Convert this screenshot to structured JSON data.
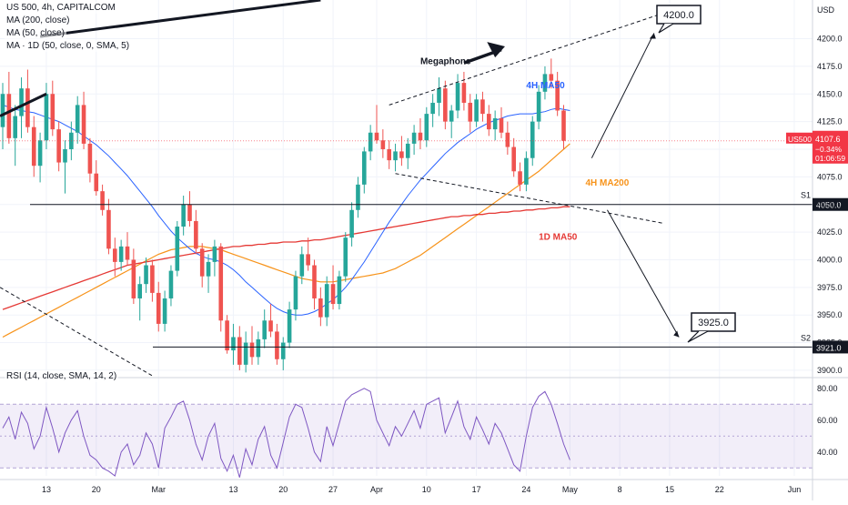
{
  "header": {
    "symbol_line": "US 500, 4h, CAPITALCOM",
    "indicators": [
      "MA (200, close)",
      "MA (50, close)",
      "MA · 1D (50, close, 0, SMA, 5)"
    ],
    "rsi_title": "RSI (14, close, SMA, 14, 2)"
  },
  "price_badge": {
    "symbol": "US500",
    "price": "4107.6",
    "change": "−0.34%",
    "countdown": "01:06:59",
    "color": "#f23645"
  },
  "chart_data": {
    "type": "candlestick",
    "currency": "USD",
    "x_ticks": [
      {
        "label": "13",
        "i": 7
      },
      {
        "label": "20",
        "i": 15
      },
      {
        "label": "Mar",
        "i": 25
      },
      {
        "label": "13",
        "i": 37
      },
      {
        "label": "20",
        "i": 45
      },
      {
        "label": "27",
        "i": 53
      },
      {
        "label": "Apr",
        "i": 60
      },
      {
        "label": "10",
        "i": 68
      },
      {
        "label": "17",
        "i": 76
      },
      {
        "label": "24",
        "i": 84
      },
      {
        "label": "May",
        "i": 91
      },
      {
        "label": "8",
        "i": 99
      },
      {
        "label": "15",
        "i": 107
      },
      {
        "label": "22",
        "i": 115
      },
      {
        "label": "Jun",
        "i": 127
      }
    ],
    "y_ticks": [
      3900,
      3925,
      3950,
      3975,
      4000,
      4025,
      4050,
      4075,
      4100,
      4125,
      4150,
      4175,
      4200
    ],
    "ylim": [
      3895,
      4235
    ],
    "candles": [
      [
        4120,
        4160,
        4100,
        4150
      ],
      [
        4150,
        4170,
        4105,
        4110
      ],
      [
        4110,
        4140,
        4085,
        4130
      ],
      [
        4130,
        4165,
        4110,
        4155
      ],
      [
        4155,
        4172,
        4115,
        4120
      ],
      [
        4120,
        4130,
        4075,
        4085
      ],
      [
        4085,
        4115,
        4070,
        4108
      ],
      [
        4108,
        4160,
        4100,
        4150
      ],
      [
        4150,
        4162,
        4112,
        4118
      ],
      [
        4118,
        4125,
        4080,
        4088
      ],
      [
        4088,
        4108,
        4060,
        4100
      ],
      [
        4100,
        4125,
        4090,
        4115
      ],
      [
        4115,
        4148,
        4105,
        4140
      ],
      [
        4140,
        4152,
        4100,
        4105
      ],
      [
        4105,
        4110,
        4070,
        4078
      ],
      [
        4078,
        4090,
        4058,
        4062
      ],
      [
        4062,
        4068,
        4040,
        4045
      ],
      [
        4045,
        4055,
        4005,
        4010
      ],
      [
        4010,
        4020,
        3985,
        3998
      ],
      [
        3998,
        4018,
        3990,
        4012
      ],
      [
        4012,
        4025,
        3995,
        4000
      ],
      [
        4000,
        4010,
        3960,
        3965
      ],
      [
        3965,
        3985,
        3945,
        3978
      ],
      [
        3978,
        4002,
        3970,
        3995
      ],
      [
        3995,
        4000,
        3962,
        3970
      ],
      [
        3970,
        3980,
        3935,
        3942
      ],
      [
        3942,
        3972,
        3935,
        3965
      ],
      [
        3965,
        3995,
        3958,
        3990
      ],
      [
        3990,
        4035,
        3985,
        4030
      ],
      [
        4030,
        4058,
        4022,
        4050
      ],
      [
        4050,
        4062,
        4030,
        4035
      ],
      [
        4035,
        4045,
        4005,
        4010
      ],
      [
        4010,
        4015,
        3975,
        3985
      ],
      [
        3985,
        4005,
        3970,
        3998
      ],
      [
        3998,
        4018,
        3985,
        4012
      ],
      [
        4012,
        4015,
        3935,
        3945
      ],
      [
        3945,
        3950,
        3915,
        3918
      ],
      [
        3918,
        3942,
        3905,
        3930
      ],
      [
        3930,
        3940,
        3900,
        3905
      ],
      [
        3905,
        3935,
        3898,
        3925
      ],
      [
        3925,
        3940,
        3905,
        3912
      ],
      [
        3912,
        3935,
        3905,
        3928
      ],
      [
        3928,
        3955,
        3920,
        3945
      ],
      [
        3945,
        3960,
        3930,
        3935
      ],
      [
        3935,
        3942,
        3905,
        3910
      ],
      [
        3910,
        3930,
        3900,
        3925
      ],
      [
        3925,
        3962,
        3920,
        3955
      ],
      [
        3955,
        3990,
        3945,
        3985
      ],
      [
        3985,
        4012,
        3978,
        4005
      ],
      [
        4005,
        4020,
        3990,
        3995
      ],
      [
        3995,
        4000,
        3955,
        3965
      ],
      [
        3965,
        3975,
        3940,
        3948
      ],
      [
        3948,
        3985,
        3940,
        3978
      ],
      [
        3978,
        3995,
        3955,
        3960
      ],
      [
        3960,
        3990,
        3955,
        3985
      ],
      [
        3985,
        4025,
        3980,
        4020
      ],
      [
        4020,
        4052,
        4012,
        4045
      ],
      [
        4045,
        4075,
        4038,
        4068
      ],
      [
        4068,
        4102,
        4060,
        4098
      ],
      [
        4098,
        4122,
        4090,
        4115
      ],
      [
        4115,
        4140,
        4105,
        4108
      ],
      [
        4108,
        4118,
        4092,
        4100
      ],
      [
        4100,
        4108,
        4082,
        4090
      ],
      [
        4090,
        4105,
        4080,
        4098
      ],
      [
        4098,
        4112,
        4085,
        4092
      ],
      [
        4092,
        4110,
        4082,
        4105
      ],
      [
        4105,
        4122,
        4095,
        4115
      ],
      [
        4115,
        4128,
        4100,
        4108
      ],
      [
        4108,
        4138,
        4102,
        4132
      ],
      [
        4132,
        4150,
        4120,
        4142
      ],
      [
        4142,
        4165,
        4130,
        4155
      ],
      [
        4155,
        4162,
        4118,
        4125
      ],
      [
        4125,
        4140,
        4110,
        4135
      ],
      [
        4135,
        4168,
        4128,
        4160
      ],
      [
        4160,
        4170,
        4135,
        4142
      ],
      [
        4142,
        4150,
        4115,
        4125
      ],
      [
        4125,
        4150,
        4120,
        4145
      ],
      [
        4145,
        4152,
        4125,
        4132
      ],
      [
        4132,
        4140,
        4112,
        4118
      ],
      [
        4118,
        4135,
        4108,
        4128
      ],
      [
        4128,
        4138,
        4110,
        4115
      ],
      [
        4115,
        4125,
        4095,
        4102
      ],
      [
        4102,
        4110,
        4075,
        4080
      ],
      [
        4080,
        4088,
        4062,
        4068
      ],
      [
        4068,
        4098,
        4062,
        4092
      ],
      [
        4092,
        4130,
        4085,
        4125
      ],
      [
        4125,
        4158,
        4118,
        4152
      ],
      [
        4152,
        4175,
        4145,
        4168
      ],
      [
        4168,
        4182,
        4155,
        4162
      ],
      [
        4162,
        4170,
        4130,
        4135
      ],
      [
        4135,
        4140,
        4100,
        4107.6
      ]
    ],
    "ma50_4h": [
      4140,
      4138,
      4136,
      4135,
      4134,
      4133,
      4131,
      4129,
      4127,
      4125,
      4122,
      4119,
      4116,
      4112,
      4108,
      4104,
      4099,
      4094,
      4088,
      4082,
      4076,
      4069,
      4062,
      4055,
      4048,
      4040,
      4033,
      4026,
      4020,
      4015,
      4010,
      4006,
      4003,
      4001,
      4000,
      3998,
      3995,
      3991,
      3986,
      3980,
      3975,
      3970,
      3965,
      3960,
      3956,
      3953,
      3951,
      3950,
      3950,
      3951,
      3953,
      3956,
      3960,
      3964,
      3969,
      3975,
      3982,
      3990,
      3998,
      4007,
      4016,
      4025,
      4034,
      4042,
      4050,
      4058,
      4065,
      4072,
      4078,
      4084,
      4090,
      4096,
      4101,
      4106,
      4110,
      4114,
      4118,
      4121,
      4124,
      4126,
      4128,
      4130,
      4131,
      4132,
      4132,
      4132,
      4133,
      4134,
      4136,
      4137,
      4136,
      4135
    ],
    "ma200_4h": [
      3930,
      3933,
      3936,
      3939,
      3942,
      3945,
      3948,
      3951,
      3954,
      3957,
      3960,
      3963,
      3966,
      3969,
      3972,
      3975,
      3978,
      3981,
      3984,
      3987,
      3990,
      3993,
      3996,
      3999,
      4002,
      4005,
      4007,
      4009,
      4010,
      4011,
      4012,
      4012,
      4012,
      4011,
      4010,
      4009,
      4007,
      4005,
      4003,
      4001,
      3999,
      3997,
      3995,
      3993,
      3991,
      3989,
      3987,
      3985,
      3983,
      3982,
      3981,
      3980,
      3980,
      3980,
      3981,
      3982,
      3983,
      3984,
      3985,
      3986,
      3987,
      3988,
      3990,
      3992,
      3995,
      3998,
      4001,
      4004,
      4008,
      4012,
      4016,
      4020,
      4024,
      4028,
      4032,
      4036,
      4040,
      4044,
      4048,
      4052,
      4056,
      4060,
      4064,
      4068,
      4072,
      4076,
      4080,
      4085,
      4090,
      4095,
      4100,
      4105
    ],
    "ma50_1d": [
      3955,
      3957,
      3959,
      3961,
      3963,
      3965,
      3967,
      3969,
      3971,
      3973,
      3975,
      3977,
      3979,
      3981,
      3983,
      3985,
      3987,
      3989,
      3991,
      3993,
      3995,
      3996,
      3997,
      3998,
      3999,
      4000,
      4001,
      4002,
      4003,
      4004,
      4005,
      4006,
      4007,
      4008,
      4009,
      4010,
      4011,
      4012,
      4012,
      4013,
      4013,
      4014,
      4014,
      4015,
      4015,
      4016,
      4016,
      4016,
      4017,
      4017,
      4018,
      4018,
      4019,
      4020,
      4021,
      4022,
      4023,
      4024,
      4025,
      4026,
      4027,
      4028,
      4029,
      4030,
      4031,
      4032,
      4033,
      4034,
      4035,
      4036,
      4037,
      4038,
      4039,
      4039,
      4040,
      4040,
      4041,
      4041,
      4042,
      4042,
      4043,
      4043,
      4044,
      4044,
      4045,
      4045,
      4046,
      4046,
      4047,
      4047,
      4048,
      4048
    ],
    "rsi": [
      55,
      62,
      48,
      65,
      58,
      42,
      50,
      68,
      55,
      40,
      52,
      60,
      66,
      50,
      38,
      35,
      30,
      28,
      25,
      40,
      45,
      32,
      38,
      52,
      45,
      30,
      55,
      62,
      70,
      72,
      60,
      45,
      35,
      50,
      58,
      36,
      28,
      38,
      24,
      42,
      32,
      48,
      56,
      38,
      30,
      46,
      62,
      70,
      68,
      55,
      40,
      34,
      56,
      44,
      58,
      72,
      76,
      78,
      80,
      78,
      60,
      52,
      44,
      56,
      50,
      58,
      66,
      55,
      70,
      72,
      74,
      52,
      62,
      72,
      56,
      48,
      62,
      54,
      45,
      58,
      52,
      42,
      32,
      28,
      50,
      68,
      75,
      78,
      70,
      58,
      45,
      35
    ],
    "rsi_ticks": [
      40,
      60,
      80
    ],
    "rsi_band": [
      30,
      70
    ],
    "levels": [
      {
        "name": "S1",
        "price": 4050.0,
        "label": "4050.0"
      },
      {
        "name": "S2",
        "price": 3921.0,
        "label": "3921.0"
      }
    ],
    "annotations": {
      "megaphone": "Megaphone",
      "target_up": "4200.0",
      "target_down": "3925.0",
      "ma50_4h": "4H MA50",
      "ma200_4h": "4H MA200",
      "ma50_1d": "1D MA50"
    },
    "colors": {
      "up": "#26a69a",
      "down": "#ef5350",
      "ma50_4h": "#2962ff",
      "ma200_4h": "#f7931a",
      "ma50_1d": "#e53935",
      "rsi": "#7e57c2"
    }
  }
}
